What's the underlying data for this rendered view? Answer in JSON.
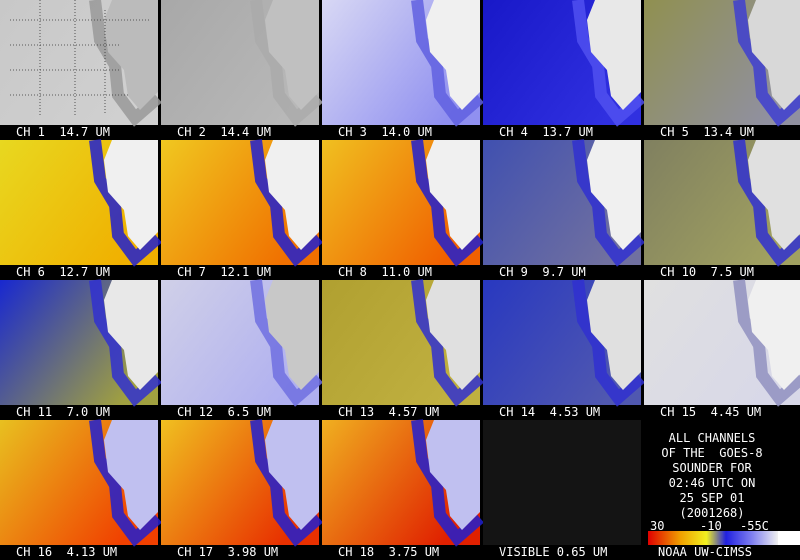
{
  "panels": [
    {
      "label": "CH 1  14.7 UM"
    },
    {
      "label": "CH 2  14.4 UM"
    },
    {
      "label": "CH 3  14.0 UM"
    },
    {
      "label": "CH 4  13.7 UM"
    },
    {
      "label": "CH 5  13.4 UM"
    },
    {
      "label": "CH 6  12.7 UM"
    },
    {
      "label": "CH 7  12.1 UM"
    },
    {
      "label": "CH 8  11.0 UM"
    },
    {
      "label": "CH 9  9.7 UM"
    },
    {
      "label": "CH 10  7.5 UM"
    },
    {
      "label": "CH 11  7.0 UM"
    },
    {
      "label": "CH 12  6.5 UM"
    },
    {
      "label": "CH 13  4.57 UM"
    },
    {
      "label": "CH 14  4.53 UM"
    },
    {
      "label": "CH 15  4.45 UM"
    },
    {
      "label": "CH 16  4.13 UM"
    },
    {
      "label": "CH 17  3.98 UM"
    },
    {
      "label": "CH 18  3.75 UM"
    },
    {
      "label": "VISIBLE 0.65 UM"
    }
  ],
  "info": {
    "lines": [
      "ALL CHANNELS",
      "OF THE  GOES-8",
      "SOUNDER FOR",
      "02:46 UTC ON",
      "25 SEP 01",
      "(2001268)"
    ],
    "colorbar_labels": [
      "30",
      "-10",
      "-55C"
    ],
    "credit": "NOAA UW-CIMSS"
  }
}
